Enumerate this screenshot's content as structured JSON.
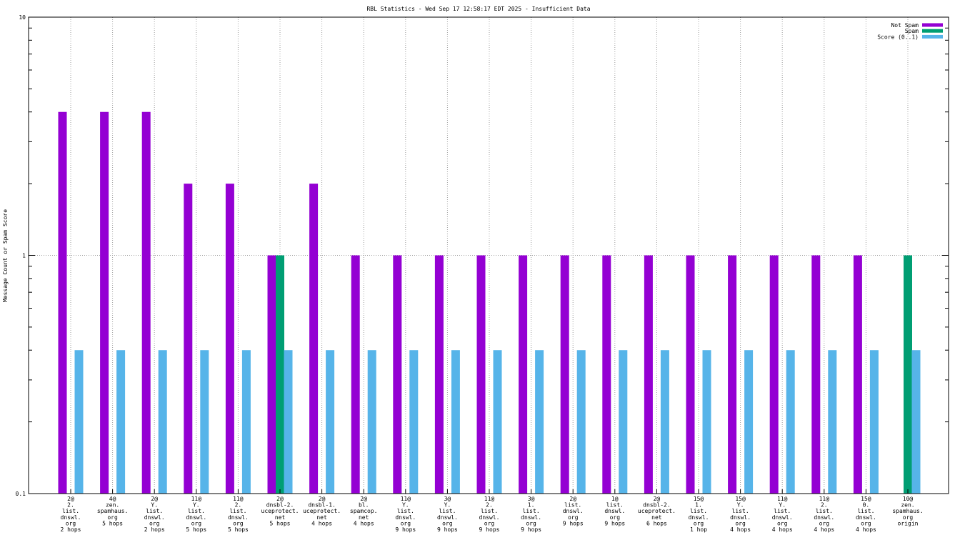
{
  "chart_data": {
    "type": "bar",
    "title": "RBL Statistics - Wed Sep 17 12:58:17 EDT 2025 - Insufficient Data",
    "ylabel": "Message Count or Spam Score",
    "xlabel": "",
    "yscale": "log",
    "ylim": [
      0.1,
      10
    ],
    "yticks": [
      "0.1",
      "1",
      "10"
    ],
    "grid": true,
    "legend_position": "top-right",
    "categories": [
      [
        "2@",
        "2.",
        "list.",
        "dnswl.",
        "org",
        "2 hops"
      ],
      [
        "4@",
        "zen.",
        "spamhaus.",
        "org",
        "5 hops"
      ],
      [
        "2@",
        "Y.",
        "list.",
        "dnswl.",
        "org",
        "2 hops"
      ],
      [
        "11@",
        "Y.",
        "list.",
        "dnswl.",
        "org",
        "5 hops"
      ],
      [
        "11@",
        "2.",
        "list.",
        "dnswl.",
        "org",
        "5 hops"
      ],
      [
        "2@",
        "dnsbl-2.",
        "uceprotect.",
        "net",
        "5 hops"
      ],
      [
        "2@",
        "dnsbl-1.",
        "uceprotect.",
        "net",
        "4 hops"
      ],
      [
        "2@",
        "bl.",
        "spamcop.",
        "net",
        "4 hops"
      ],
      [
        "11@",
        "Y.",
        "list.",
        "dnswl.",
        "org",
        "9 hops"
      ],
      [
        "3@",
        "Y.",
        "list.",
        "dnswl.",
        "org",
        "9 hops"
      ],
      [
        "11@",
        "2.",
        "list.",
        "dnswl.",
        "org",
        "9 hops"
      ],
      [
        "3@",
        "1.",
        "list.",
        "dnswl.",
        "org",
        "9 hops"
      ],
      [
        "2@",
        "list.",
        "dnswl.",
        "org",
        "9 hops"
      ],
      [
        "1@",
        "list.",
        "dnswl.",
        "org",
        "9 hops"
      ],
      [
        "2@",
        "dnsbl-2.",
        "uceprotect.",
        "net",
        "6 hops"
      ],
      [
        "15@",
        "1.",
        "list.",
        "dnswl.",
        "org",
        "1 hop"
      ],
      [
        "15@",
        "Y.",
        "list.",
        "dnswl.",
        "org",
        "4 hops"
      ],
      [
        "11@",
        "Y.",
        "list.",
        "dnswl.",
        "org",
        "4 hops"
      ],
      [
        "11@",
        "2.",
        "list.",
        "dnswl.",
        "org",
        "4 hops"
      ],
      [
        "15@",
        "0.",
        "list.",
        "dnswl.",
        "org",
        "4 hops"
      ],
      [
        "10@",
        "zen.",
        "spamhaus.",
        "org",
        "origin"
      ]
    ],
    "series": [
      {
        "name": "Not Spam",
        "color": "#9400d3",
        "values": [
          4,
          4,
          4,
          2,
          2,
          1,
          2,
          1,
          1,
          1,
          1,
          1,
          1,
          1,
          1,
          1,
          1,
          1,
          1,
          1,
          0
        ]
      },
      {
        "name": "Spam",
        "color": "#009e73",
        "values": [
          0,
          0,
          0,
          0,
          0,
          1,
          0,
          0,
          0,
          0,
          0,
          0,
          0,
          0,
          0,
          0,
          0,
          0,
          0,
          0,
          1
        ]
      },
      {
        "name": "Score (0..1)",
        "color": "#56b4e9",
        "values": [
          0.4,
          0.4,
          0.4,
          0.4,
          0.4,
          0.4,
          0.4,
          0.4,
          0.4,
          0.4,
          0.4,
          0.4,
          0.4,
          0.4,
          0.4,
          0.4,
          0.4,
          0.4,
          0.4,
          0.4,
          0.4
        ]
      }
    ]
  }
}
